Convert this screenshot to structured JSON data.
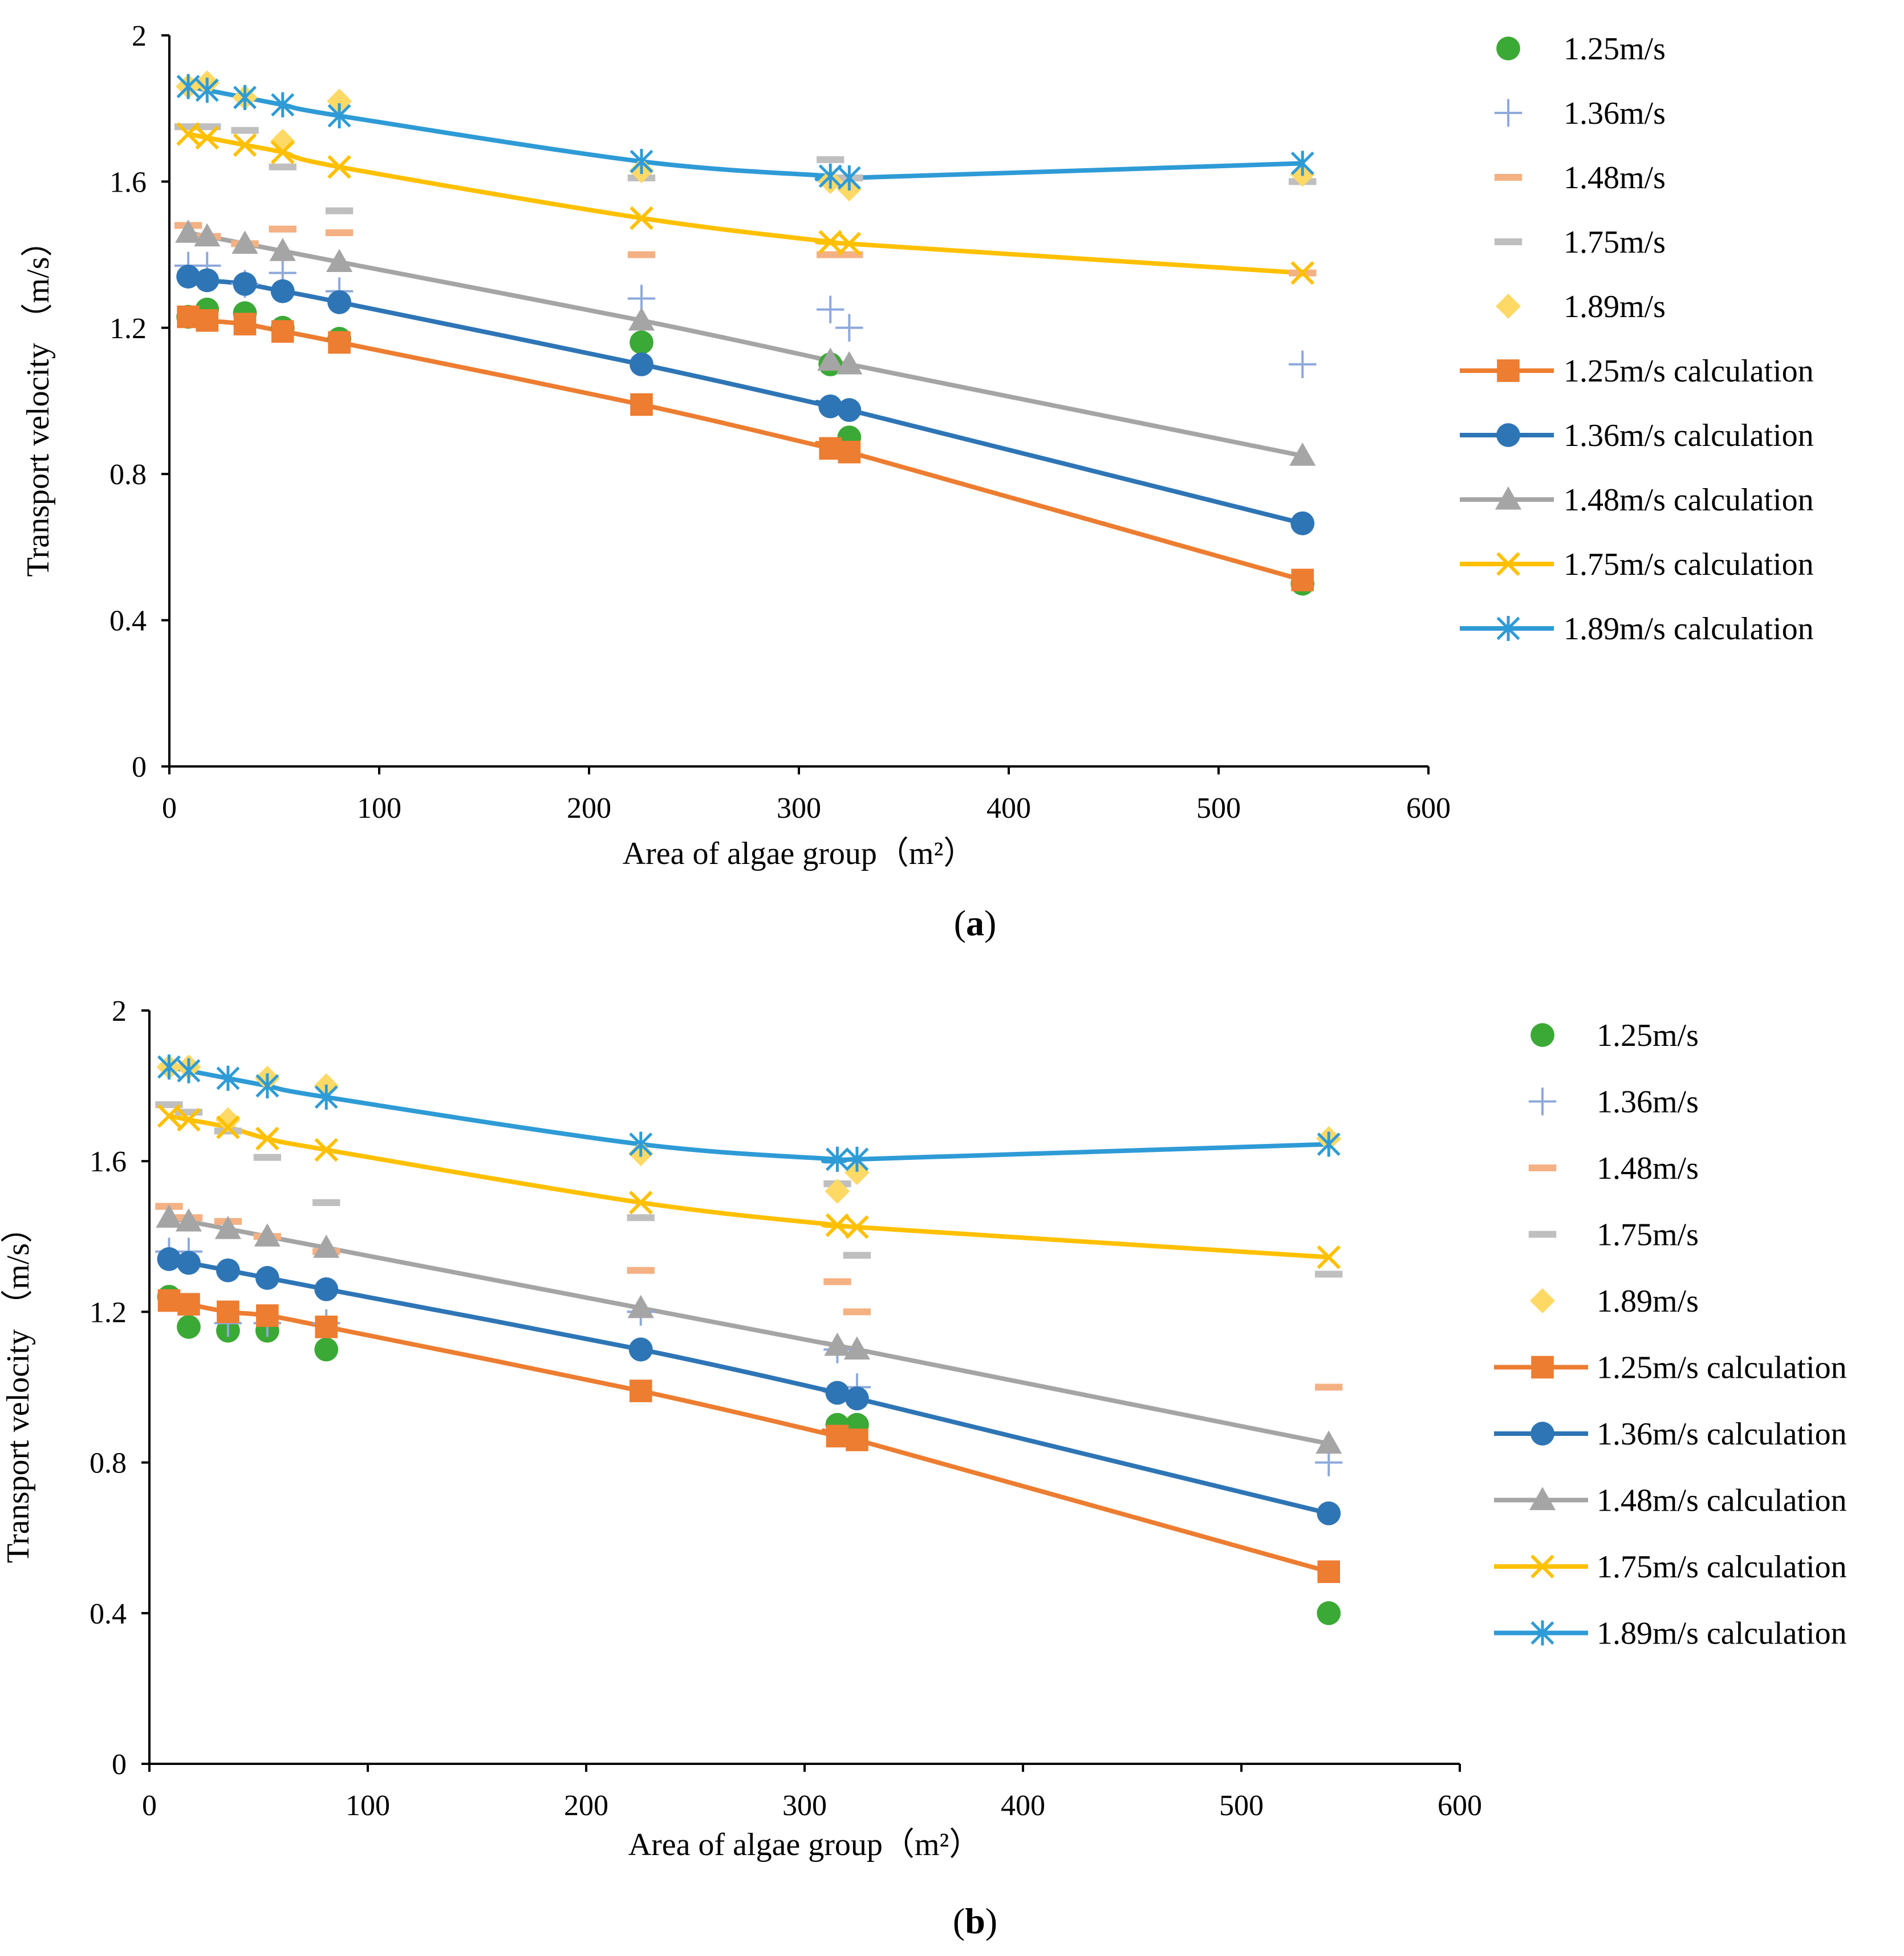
{
  "figure": {
    "colors": {
      "s125": "#ED7D31",
      "s136": "#2E75B6",
      "s148": "#A5A5A5",
      "s175": "#FFC000",
      "s189": "#2E9BD6",
      "obs125": "#3BA935",
      "obs136": "#8EA9DB",
      "obs148": "#F4B183",
      "obs175": "#BFBFBF",
      "obs189": "#FFD966"
    }
  },
  "chart_data": [
    {
      "type": "scatter+line",
      "panel_label": "a",
      "xlabel": "Area of algae group（m²）",
      "ylabel": "Transport velocity （m/s）",
      "xlim": [
        0,
        600
      ],
      "ylim": [
        0,
        2
      ],
      "x_ticks": [
        "0",
        "100",
        "200",
        "300",
        "400",
        "500",
        "600"
      ],
      "y_ticks": [
        "0",
        "0.4",
        "0.8",
        "1.2",
        "1.6",
        "2"
      ],
      "legend_position": "right",
      "observed_series": [
        {
          "name": "1.25m/s",
          "marker": "circle",
          "x": [
            9,
            18,
            36,
            54,
            81,
            225,
            315,
            324,
            540
          ],
          "y": [
            1.23,
            1.25,
            1.24,
            1.2,
            1.17,
            1.16,
            1.1,
            0.9,
            0.5
          ]
        },
        {
          "name": "1.36m/s",
          "marker": "plus",
          "x": [
            9,
            18,
            36,
            54,
            81,
            225,
            315,
            324,
            540
          ],
          "y": [
            1.37,
            1.37,
            1.32,
            1.35,
            1.3,
            1.28,
            1.25,
            1.2,
            1.1
          ]
        },
        {
          "name": "1.48m/s",
          "marker": "dash",
          "x": [
            9,
            18,
            36,
            54,
            81,
            225,
            315,
            324,
            540
          ],
          "y": [
            1.48,
            1.45,
            1.43,
            1.47,
            1.46,
            1.4,
            1.4,
            1.4,
            1.35
          ]
        },
        {
          "name": "1.75m/s",
          "marker": "dash",
          "x": [
            9,
            18,
            36,
            54,
            81,
            225,
            315,
            324,
            540
          ],
          "y": [
            1.75,
            1.75,
            1.74,
            1.64,
            1.52,
            1.61,
            1.66,
            1.61,
            1.6
          ]
        },
        {
          "name": "1.89m/s",
          "marker": "diamond",
          "x": [
            9,
            18,
            36,
            54,
            81,
            225,
            315,
            324,
            540
          ],
          "y": [
            1.86,
            1.87,
            1.83,
            1.71,
            1.82,
            1.63,
            1.6,
            1.58,
            1.62
          ]
        }
      ],
      "calculated_series": [
        {
          "name": "1.25m/s calculation",
          "marker": "square",
          "x": [
            9,
            18,
            36,
            54,
            81,
            225,
            315,
            324,
            540
          ],
          "y": [
            1.23,
            1.22,
            1.21,
            1.19,
            1.16,
            0.99,
            0.87,
            0.86,
            0.51
          ]
        },
        {
          "name": "1.36m/s calculation",
          "marker": "circle",
          "x": [
            9,
            18,
            36,
            54,
            81,
            225,
            315,
            324,
            540
          ],
          "y": [
            1.34,
            1.33,
            1.32,
            1.3,
            1.27,
            1.1,
            0.985,
            0.975,
            0.665
          ]
        },
        {
          "name": "1.48m/s calculation",
          "marker": "triangle",
          "x": [
            9,
            18,
            36,
            54,
            81,
            225,
            315,
            324,
            540
          ],
          "y": [
            1.46,
            1.45,
            1.43,
            1.41,
            1.38,
            1.22,
            1.11,
            1.1,
            0.85
          ]
        },
        {
          "name": "1.75m/s calculation",
          "marker": "x",
          "x": [
            9,
            18,
            36,
            54,
            81,
            225,
            315,
            324,
            540
          ],
          "y": [
            1.73,
            1.72,
            1.7,
            1.68,
            1.64,
            1.5,
            1.435,
            1.43,
            1.35
          ]
        },
        {
          "name": "1.89m/s calculation",
          "marker": "star",
          "x": [
            9,
            18,
            36,
            54,
            81,
            225,
            315,
            324,
            540
          ],
          "y": [
            1.86,
            1.85,
            1.83,
            1.81,
            1.78,
            1.655,
            1.615,
            1.61,
            1.65
          ]
        }
      ]
    },
    {
      "type": "scatter+line",
      "panel_label": "b",
      "xlabel": "Area of algae group（m²）",
      "ylabel": "Transport velocity （m/s）",
      "xlim": [
        0,
        600
      ],
      "ylim": [
        0,
        2
      ],
      "x_ticks": [
        "0",
        "100",
        "200",
        "300",
        "400",
        "500",
        "600"
      ],
      "y_ticks": [
        "0",
        "0.4",
        "0.8",
        "1.2",
        "1.6",
        "2"
      ],
      "legend_position": "right",
      "observed_series": [
        {
          "name": "1.25m/s",
          "marker": "circle",
          "x": [
            9,
            18,
            36,
            54,
            81,
            225,
            315,
            324,
            540
          ],
          "y": [
            1.24,
            1.16,
            1.15,
            1.15,
            1.1,
            1.1,
            0.9,
            0.9,
            0.4
          ]
        },
        {
          "name": "1.36m/s",
          "marker": "plus",
          "x": [
            9,
            18,
            36,
            54,
            81,
            225,
            315,
            324,
            540
          ],
          "y": [
            1.36,
            1.36,
            1.17,
            1.17,
            1.17,
            1.2,
            1.1,
            1.0,
            0.8
          ]
        },
        {
          "name": "1.48m/s",
          "marker": "dash",
          "x": [
            9,
            18,
            36,
            54,
            81,
            225,
            315,
            324,
            540
          ],
          "y": [
            1.48,
            1.45,
            1.44,
            1.4,
            1.36,
            1.31,
            1.28,
            1.2,
            1.0
          ]
        },
        {
          "name": "1.75m/s",
          "marker": "dash",
          "x": [
            9,
            18,
            36,
            54,
            81,
            225,
            315,
            324,
            540
          ],
          "y": [
            1.75,
            1.73,
            1.68,
            1.61,
            1.49,
            1.45,
            1.54,
            1.35,
            1.3
          ]
        },
        {
          "name": "1.89m/s",
          "marker": "diamond",
          "x": [
            9,
            18,
            36,
            54,
            81,
            225,
            315,
            324,
            540
          ],
          "y": [
            1.85,
            1.85,
            1.71,
            1.82,
            1.8,
            1.62,
            1.52,
            1.57,
            1.66
          ]
        }
      ],
      "calculated_series": [
        {
          "name": "1.25m/s calculation",
          "marker": "square",
          "x": [
            9,
            18,
            36,
            54,
            81,
            225,
            315,
            324,
            540
          ],
          "y": [
            1.23,
            1.22,
            1.2,
            1.19,
            1.16,
            0.99,
            0.87,
            0.86,
            0.51
          ]
        },
        {
          "name": "1.36m/s calculation",
          "marker": "circle",
          "x": [
            9,
            18,
            36,
            54,
            81,
            225,
            315,
            324,
            540
          ],
          "y": [
            1.34,
            1.33,
            1.31,
            1.29,
            1.26,
            1.1,
            0.985,
            0.97,
            0.665
          ]
        },
        {
          "name": "1.48m/s calculation",
          "marker": "triangle",
          "x": [
            9,
            18,
            36,
            54,
            81,
            225,
            315,
            324,
            540
          ],
          "y": [
            1.45,
            1.44,
            1.42,
            1.4,
            1.37,
            1.21,
            1.11,
            1.1,
            0.85
          ]
        },
        {
          "name": "1.75m/s calculation",
          "marker": "x",
          "x": [
            9,
            18,
            36,
            54,
            81,
            225,
            315,
            324,
            540
          ],
          "y": [
            1.72,
            1.71,
            1.69,
            1.66,
            1.63,
            1.49,
            1.43,
            1.425,
            1.345
          ]
        },
        {
          "name": "1.89m/s calculation",
          "marker": "star",
          "x": [
            9,
            18,
            36,
            54,
            81,
            225,
            315,
            324,
            540
          ],
          "y": [
            1.85,
            1.84,
            1.82,
            1.8,
            1.77,
            1.645,
            1.605,
            1.605,
            1.645
          ]
        }
      ]
    }
  ]
}
